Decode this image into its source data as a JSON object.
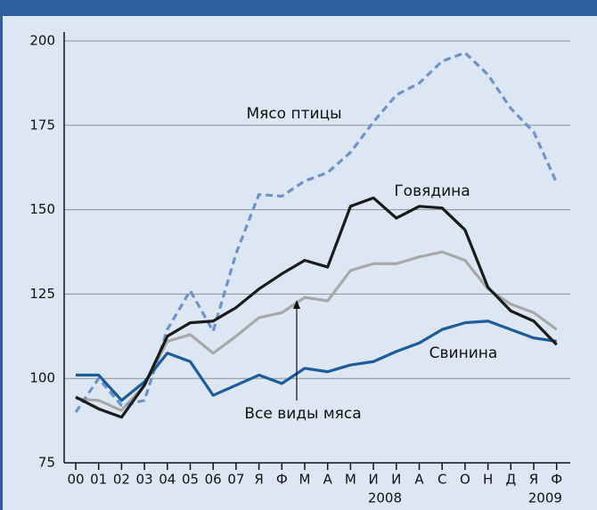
{
  "chart_data": {
    "type": "line",
    "categories": [
      "00",
      "01",
      "02",
      "03",
      "04",
      "05",
      "06",
      "07",
      "Я",
      "Ф",
      "М",
      "А",
      "М",
      "И",
      "И",
      "А",
      "С",
      "О",
      "Н",
      "Д",
      "Я",
      "Ф"
    ],
    "year_labels": [
      "2008",
      "2009"
    ],
    "series": [
      {
        "name": "Мясо птицы",
        "color": "#6f93c9",
        "dashed": true,
        "values": [
          90,
          100,
          92,
          93.5,
          114.5,
          126,
          114,
          137,
          154.5,
          154,
          158.5,
          161,
          167,
          176,
          184,
          187.5,
          194,
          196.5,
          190,
          180,
          173,
          158
        ]
      },
      {
        "name": "Говядина",
        "color": "#1a1a1a",
        "dashed": false,
        "values": [
          94.5,
          91,
          88.5,
          98,
          112.5,
          116.5,
          117,
          121,
          126.5,
          131,
          135,
          133,
          151,
          153.5,
          147.5,
          151,
          150.5,
          144,
          127,
          120,
          117,
          110
        ]
      },
      {
        "name": "Все виды мяса",
        "color": "#a8a8a8",
        "dashed": false,
        "values": [
          94,
          93.5,
          90.5,
          98,
          111,
          113,
          107.5,
          112.5,
          118,
          119.5,
          124,
          123,
          132,
          134,
          134,
          136,
          137.5,
          135,
          126.5,
          122,
          119.5,
          114.5
        ]
      },
      {
        "name": "Свинина",
        "color": "#1d5c9c",
        "dashed": false,
        "values": [
          101,
          101,
          93.5,
          99,
          107.5,
          105,
          95,
          98,
          101,
          98.5,
          103,
          102,
          104,
          105,
          108,
          110.5,
          114.5,
          116.5,
          117,
          114.5,
          112,
          111
        ]
      }
    ],
    "ylim": [
      75,
      200
    ],
    "yticks": [
      75,
      100,
      125,
      150,
      175,
      200
    ],
    "grid": true
  }
}
